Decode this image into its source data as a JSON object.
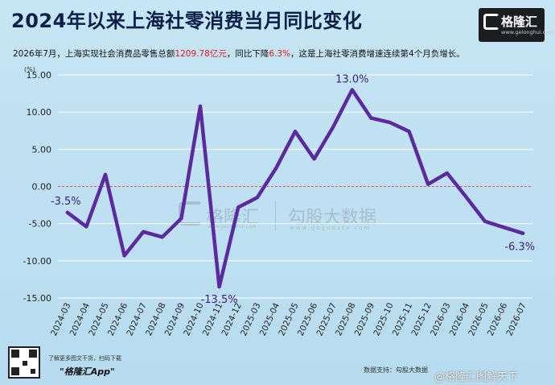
{
  "header": {
    "title": "2024年以来上海社零消费当月同比变化",
    "subtitle_pre": "2026年7月，上海实现社会消费品零售总额",
    "subtitle_val1": "1209.78亿元",
    "subtitle_mid": "，同比下降",
    "subtitle_val2": "6.3%",
    "subtitle_post": "，这是上海社零消费增速连续第4个月负增长。"
  },
  "logo": {
    "name": "格隆汇",
    "url": "www.gelonghui.com"
  },
  "watermark": {
    "brand": "格隆汇",
    "brand_url": "www.gelonghui.com",
    "data_brand": "勾股大数据",
    "data_url": "www.gogudata.com"
  },
  "footer": {
    "qr_caption": "了解更多图文干货，扫码下载",
    "app_name": "\"格隆汇App\"",
    "source": "数据支持：勾股大数据",
    "weibo": "@格隆汇图解天下"
  },
  "colors": {
    "line": "#5b2a9e",
    "zero_line": "#d9534f",
    "grid": "#ffffff",
    "title": "#0c1f48",
    "highlight": "#e0191e"
  },
  "chart_data": {
    "type": "line",
    "unit_label": "(%)",
    "categories": [
      "2024-03",
      "2024-04",
      "2024-05",
      "2024-06",
      "2024-07",
      "2024-08",
      "2024-09",
      "2024-10",
      "2024-11",
      "2024-12",
      "2025-03",
      "2025-04",
      "2025-05",
      "2025-06",
      "2025-07",
      "2025-08",
      "2025-09",
      "2025-10",
      "2025-11",
      "2025-12",
      "2026-03",
      "2026-04",
      "2026-05",
      "2026-06",
      "2026-07"
    ],
    "series": [
      {
        "values": [
          -3.5,
          -5.4,
          1.6,
          -9.3,
          -6.1,
          -6.8,
          -4.3,
          10.8,
          -13.5,
          -2.8,
          -1.5,
          2.5,
          7.4,
          3.7,
          8.0,
          13.0,
          9.2,
          8.6,
          7.4,
          0.3,
          1.8,
          -1.4,
          -4.7,
          -5.5,
          -6.3
        ]
      }
    ],
    "ylim": [
      -15,
      15
    ],
    "yticks": [
      "-15.00",
      "-10.00",
      "-5.00",
      "0.00",
      "5.00",
      "10.00",
      "15.00"
    ],
    "ytick_values": [
      -15,
      -10,
      -5,
      0,
      5,
      10,
      15
    ],
    "annotations": [
      {
        "index": 0,
        "text": "-3.5%"
      },
      {
        "index": 8,
        "text": "-13.5%"
      },
      {
        "index": 15,
        "text": "13.0%"
      },
      {
        "index": 24,
        "text": "-6.3%"
      }
    ],
    "grid": "horizontal"
  }
}
